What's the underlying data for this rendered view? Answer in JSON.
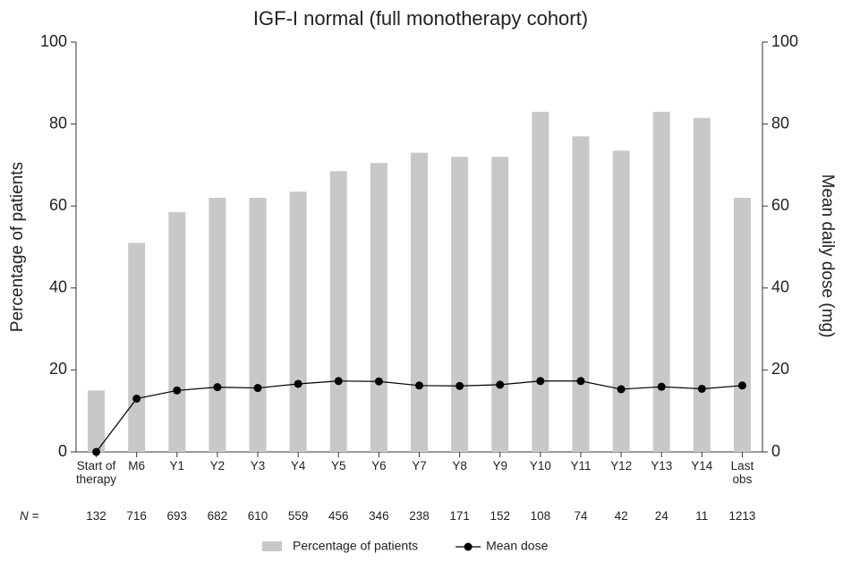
{
  "chart_data": {
    "type": "bar_line",
    "title": "IGF-I normal (full monotherapy cohort)",
    "y_label": "Percentage of patients",
    "y2_label": "Mean daily dose (mg)",
    "categories": [
      "Start of therapy",
      "M6",
      "Y1",
      "Y2",
      "Y3",
      "Y4",
      "Y5",
      "Y6",
      "Y7",
      "Y8",
      "Y9",
      "Y10",
      "Y11",
      "Y12",
      "Y13",
      "Y14",
      "Last obs"
    ],
    "series": [
      {
        "name": "Percentage of patients",
        "color": "#c8c8c8",
        "kind": "bar",
        "values": [
          15,
          51,
          58.5,
          62,
          62,
          63.5,
          68.5,
          70.5,
          73,
          72,
          72,
          83,
          77,
          73.5,
          83,
          81.5,
          62
        ]
      },
      {
        "name": "Mean dose",
        "color": "#000000",
        "kind": "line",
        "axis": "y2",
        "values": [
          0,
          13,
          15,
          15.8,
          15.6,
          16.6,
          17.3,
          17.2,
          16.2,
          16.1,
          16.4,
          17.3,
          17.3,
          15.3,
          15.9,
          15.4,
          16.2
        ]
      }
    ],
    "n_label": "N =",
    "n_values": [
      132,
      716,
      693,
      682,
      610,
      559,
      456,
      346,
      238,
      171,
      152,
      108,
      74,
      42,
      24,
      11,
      1213
    ],
    "ylim": [
      0,
      100
    ],
    "yticks": [
      0,
      20,
      40,
      60,
      80,
      100
    ],
    "y2lim": [
      0,
      100
    ],
    "y2ticks": [
      0,
      20,
      40,
      60,
      80,
      100
    ],
    "legend": "bottom"
  }
}
